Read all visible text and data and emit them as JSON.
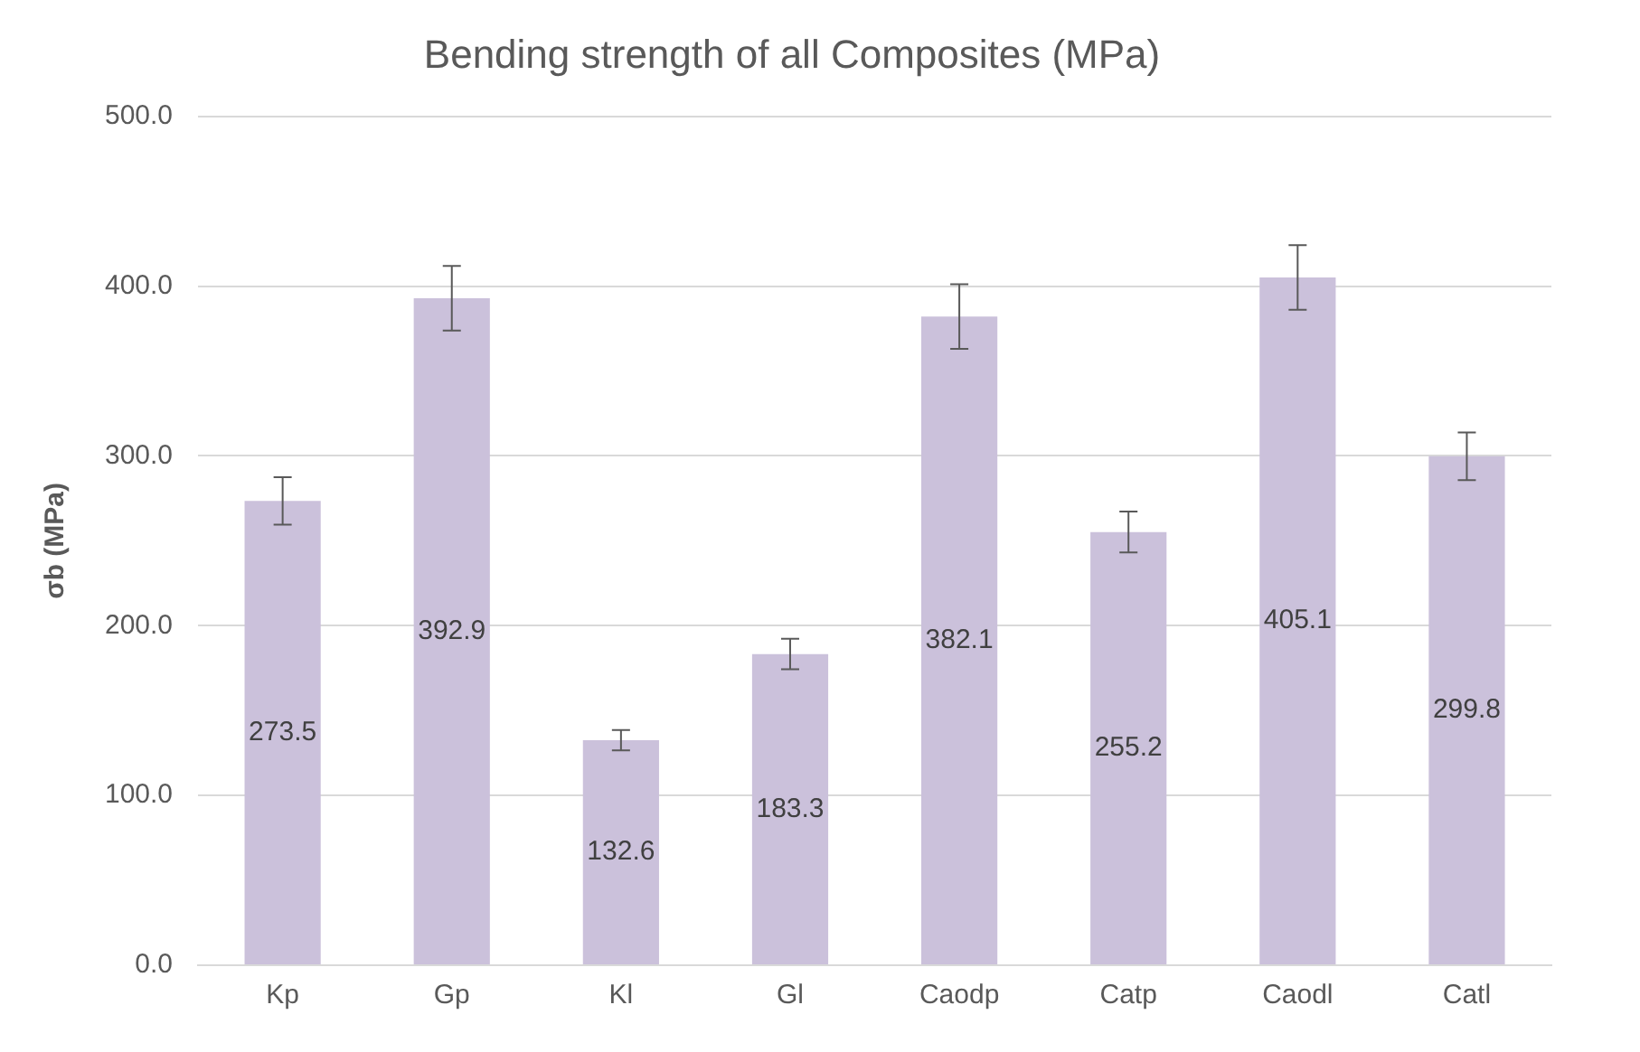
{
  "chart_data": {
    "type": "bar",
    "title": "Bending strength of all Composites (MPa)",
    "ylabel": "σb (MPa)",
    "categories": [
      "Kp",
      "Gp",
      "Kl",
      "Gl",
      "Caodp",
      "Catp",
      "Caodl",
      "Catl"
    ],
    "values": [
      273.5,
      392.9,
      132.6,
      183.3,
      382.1,
      255.2,
      405.1,
      299.8
    ],
    "errors": [
      14,
      19,
      6,
      9,
      19,
      12,
      19,
      14
    ],
    "color": "#cbc1db",
    "ylim": [
      0,
      500
    ],
    "yticks": [
      {
        "value": 0,
        "label": "0.0"
      },
      {
        "value": 100,
        "label": "100.0"
      },
      {
        "value": 200,
        "label": "200.0"
      },
      {
        "value": 300,
        "label": "300.0"
      },
      {
        "value": 400,
        "label": "400.0"
      },
      {
        "value": 500,
        "label": "500.0"
      }
    ],
    "grid": "y",
    "data_labels": true,
    "legend": false
  }
}
